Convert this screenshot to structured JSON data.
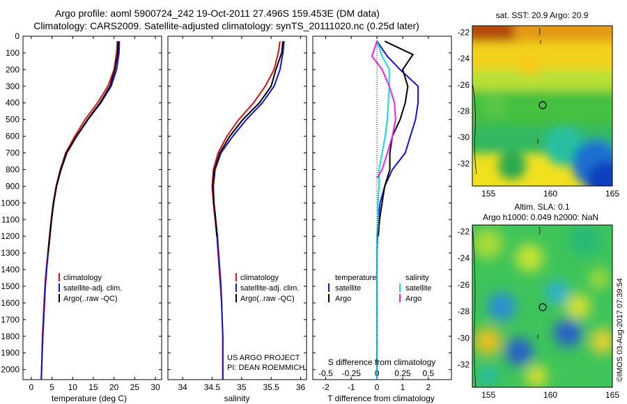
{
  "title": {
    "line1": "Argo profile: aoml 5900724_242 19-Oct-2011 27.496S 159.453E (DM data)",
    "line2": "Climatology: CARS2009. Satellite-adjusted climatology: synTS_20111020.nc (0.25d later)"
  },
  "depth_axis": {
    "ticks": [
      0,
      100,
      200,
      300,
      400,
      500,
      600,
      700,
      800,
      900,
      1000,
      1100,
      1200,
      1300,
      1400,
      1500,
      1600,
      1700,
      1800,
      1900,
      2000
    ],
    "lim": [
      0,
      2060
    ]
  },
  "panels": {
    "temperature": {
      "xlabel": "temperature (deg C)",
      "xticks": [
        "0",
        "5",
        "10",
        "15",
        "20",
        "25",
        "30"
      ],
      "legend": [
        "climatology",
        "satellite-adj. clim.",
        "Argo(..raw -QC)"
      ]
    },
    "salinity": {
      "xlabel": "salinity",
      "xticks": [
        "34",
        "34.5",
        "35",
        "35.5",
        "36"
      ],
      "legend": [
        "climatology",
        "satellite-adj. clim.",
        "Argo(..raw -QC)"
      ],
      "credit1": "US ARGO PROJECT",
      "credit2": "PI: DEAN ROEMMICH"
    },
    "difference": {
      "top_xlabel": "S difference from climatology",
      "top_xticks": [
        "-0.5",
        "-0.25",
        "0",
        "0.25",
        "0.5"
      ],
      "xlabel": "T difference from climatology",
      "xticks": [
        "-2",
        "-1",
        "0",
        "1",
        "2"
      ],
      "legend_temp_title": "temperature",
      "legend_sal_title": "salinity",
      "legend_temp": [
        "satellite",
        "Argo"
      ],
      "legend_sal": [
        "satellite",
        "Argo"
      ]
    }
  },
  "maps": {
    "sst": {
      "title": "sat. SST: 20.9  Argo: 20.9",
      "yticks": [
        "-22",
        "-24",
        "-26",
        "-28",
        "-30",
        "-32"
      ],
      "xticks": [
        "155",
        "160",
        "165"
      ]
    },
    "sla": {
      "title1": "Altim. SLA: 0.1",
      "title2": "Argo h1000: 0.049 h2000: NaN",
      "yticks": [
        "-22",
        "-24",
        "-26",
        "-28",
        "-30",
        "-32"
      ],
      "xticks": [
        "155",
        "160",
        "165"
      ]
    }
  },
  "watermark": "©IMOS 03-Aug-2017 07:39:54",
  "colors": {
    "climatology": "#dd1111",
    "satellite": "#1111dd",
    "argo": "#000000",
    "sat_salinity": "#11dddd",
    "argo_salinity": "#ee22ee"
  },
  "chart_data": [
    {
      "type": "line",
      "title": "",
      "xlabel": "temperature (deg C)",
      "ylabel": "",
      "xlim": [
        -2,
        31.5
      ],
      "ylim": [
        0,
        2060
      ],
      "y_reversed": true,
      "series": [
        {
          "name": "climatology",
          "x": [
            20.8,
            20.6,
            20.0,
            18.5,
            16.0,
            13.0,
            10.5,
            8.3,
            7.0,
            6.0,
            5.3,
            4.8,
            4.4,
            4.0,
            3.6,
            3.3,
            3.1,
            2.9,
            2.7,
            2.6,
            2.5,
            2.4
          ],
          "depth": [
            30,
            100,
            200,
            300,
            400,
            500,
            600,
            700,
            800,
            900,
            1000,
            1100,
            1200,
            1300,
            1400,
            1500,
            1600,
            1700,
            1800,
            1900,
            2000,
            2060
          ]
        },
        {
          "name": "satellite-adj. clim.",
          "x": [
            21.3,
            21.2,
            20.6,
            19.3,
            16.8,
            13.7,
            11.0,
            8.6,
            7.2,
            6.1,
            5.4,
            4.9,
            4.5,
            4.1,
            3.7,
            3.4,
            3.2,
            3.0,
            2.8,
            2.65,
            2.5,
            2.45
          ],
          "depth": [
            30,
            100,
            200,
            300,
            400,
            500,
            600,
            700,
            800,
            900,
            1000,
            1100,
            1200,
            1300,
            1400,
            1500,
            1600,
            1700,
            1800,
            1900,
            2000,
            2060
          ]
        },
        {
          "name": "Argo(..raw -QC)",
          "x": [
            21.0,
            20.9,
            20.2,
            19.0,
            16.6,
            13.6,
            10.9,
            8.5,
            7.1,
            6.1,
            5.4,
            4.9,
            4.5,
            4.1
          ],
          "depth": [
            30,
            100,
            200,
            300,
            400,
            500,
            600,
            700,
            800,
            900,
            1000,
            1100,
            1200,
            1300
          ]
        }
      ]
    },
    {
      "type": "line",
      "title": "",
      "xlabel": "salinity",
      "ylabel": "",
      "xlim": [
        33.75,
        36.1
      ],
      "ylim": [
        0,
        2060
      ],
      "y_reversed": true,
      "series": [
        {
          "name": "climatology",
          "x": [
            35.65,
            35.62,
            35.55,
            35.4,
            35.2,
            34.95,
            34.75,
            34.6,
            34.52,
            34.5,
            34.52,
            34.55,
            34.58,
            34.6,
            34.62,
            34.64,
            34.66,
            34.67,
            34.68,
            34.68,
            34.68,
            34.68
          ],
          "depth": [
            30,
            100,
            200,
            300,
            400,
            500,
            600,
            700,
            800,
            900,
            1000,
            1100,
            1200,
            1300,
            1400,
            1500,
            1600,
            1700,
            1800,
            1900,
            2000,
            2060
          ]
        },
        {
          "name": "satellite-adj. clim.",
          "x": [
            35.72,
            35.7,
            35.65,
            35.55,
            35.35,
            35.08,
            34.85,
            34.65,
            34.55,
            34.52,
            34.53,
            34.56,
            34.59,
            34.61,
            34.63,
            34.65,
            34.66,
            34.67,
            34.68,
            34.68,
            34.68,
            34.68
          ],
          "depth": [
            30,
            100,
            200,
            300,
            400,
            500,
            600,
            700,
            800,
            900,
            1000,
            1100,
            1200,
            1300,
            1400,
            1500,
            1600,
            1700,
            1800,
            1900,
            2000,
            2060
          ]
        },
        {
          "name": "Argo(..raw -QC)",
          "x": [
            35.7,
            35.68,
            35.58,
            35.5,
            35.3,
            35.02,
            34.8,
            34.63,
            34.54,
            34.51,
            34.53,
            34.56,
            34.58
          ],
          "depth": [
            30,
            100,
            200,
            300,
            400,
            500,
            600,
            700,
            800,
            900,
            1000,
            1100,
            1200
          ]
        }
      ]
    },
    {
      "type": "line",
      "title": "",
      "xlabel": "T difference from climatology",
      "x2label": "S difference from climatology",
      "ylabel": "",
      "xlim": [
        -2.5,
        2.9
      ],
      "x2lim": [
        -0.625,
        0.725
      ],
      "ylim": [
        0,
        2060
      ],
      "y_reversed": true,
      "series": [
        {
          "name": "temperature satellite",
          "axis": "T",
          "x": [
            0.0,
            0.4,
            0.9,
            1.6,
            1.6,
            1.5,
            1.3,
            1.1,
            0.6,
            0.3,
            0.12,
            0.05,
            0.02,
            0.0,
            0.0,
            0.0,
            0.0,
            0.0,
            0.0,
            0.0,
            0.0
          ],
          "depth": [
            30,
            120,
            200,
            300,
            400,
            500,
            600,
            700,
            800,
            900,
            1000,
            1100,
            1200,
            1300,
            1400,
            1500,
            1600,
            1700,
            1800,
            1900,
            2060
          ]
        },
        {
          "name": "temperature Argo",
          "axis": "T",
          "x": [
            0.3,
            1.4,
            1.0,
            1.2,
            1.1,
            0.9,
            0.6,
            0.5,
            0.5,
            0.3,
            0.2,
            0.1,
            0.05
          ],
          "depth": [
            30,
            110,
            200,
            300,
            400,
            500,
            600,
            700,
            800,
            900,
            1000,
            1100,
            1200
          ]
        },
        {
          "name": "salinity satellite",
          "axis": "S",
          "x": [
            0.0,
            0.05,
            0.12,
            0.12,
            0.11,
            0.1,
            0.08,
            0.05,
            0.02,
            0.02,
            0.01,
            0.01,
            0.0,
            0.0,
            0.0,
            0.0,
            0.0,
            0.0,
            0.0,
            0.0,
            0.0
          ],
          "depth": [
            30,
            120,
            200,
            300,
            400,
            500,
            600,
            700,
            800,
            900,
            1000,
            1100,
            1200,
            1300,
            1400,
            1500,
            1600,
            1700,
            1800,
            1900,
            2060
          ]
        },
        {
          "name": "salinity Argo",
          "axis": "S",
          "x": [
            0.0,
            -0.05,
            0.05,
            0.12,
            0.17,
            0.18,
            0.15,
            0.1,
            0.05,
            0.0
          ],
          "depth": [
            30,
            120,
            200,
            300,
            400,
            500,
            600,
            700,
            800,
            850
          ]
        }
      ]
    },
    {
      "type": "heatmap",
      "title": "sat. SST: 20.9  Argo: 20.9",
      "xlim": [
        153.7,
        165
      ],
      "ylim": [
        -33.7,
        -21.5
      ],
      "xticks": [
        155,
        160,
        165
      ],
      "yticks": [
        -22,
        -24,
        -26,
        -28,
        -30,
        -32
      ],
      "argo_position": [
        159.453,
        -27.496
      ]
    },
    {
      "type": "heatmap",
      "title": "Altim. SLA: 0.1",
      "xlim": [
        153.7,
        165
      ],
      "ylim": [
        -33.7,
        -21.5
      ],
      "xticks": [
        155,
        160,
        165
      ],
      "yticks": [
        -22,
        -24,
        -26,
        -28,
        -30,
        -32
      ],
      "argo_position": [
        159.453,
        -27.496
      ]
    }
  ]
}
